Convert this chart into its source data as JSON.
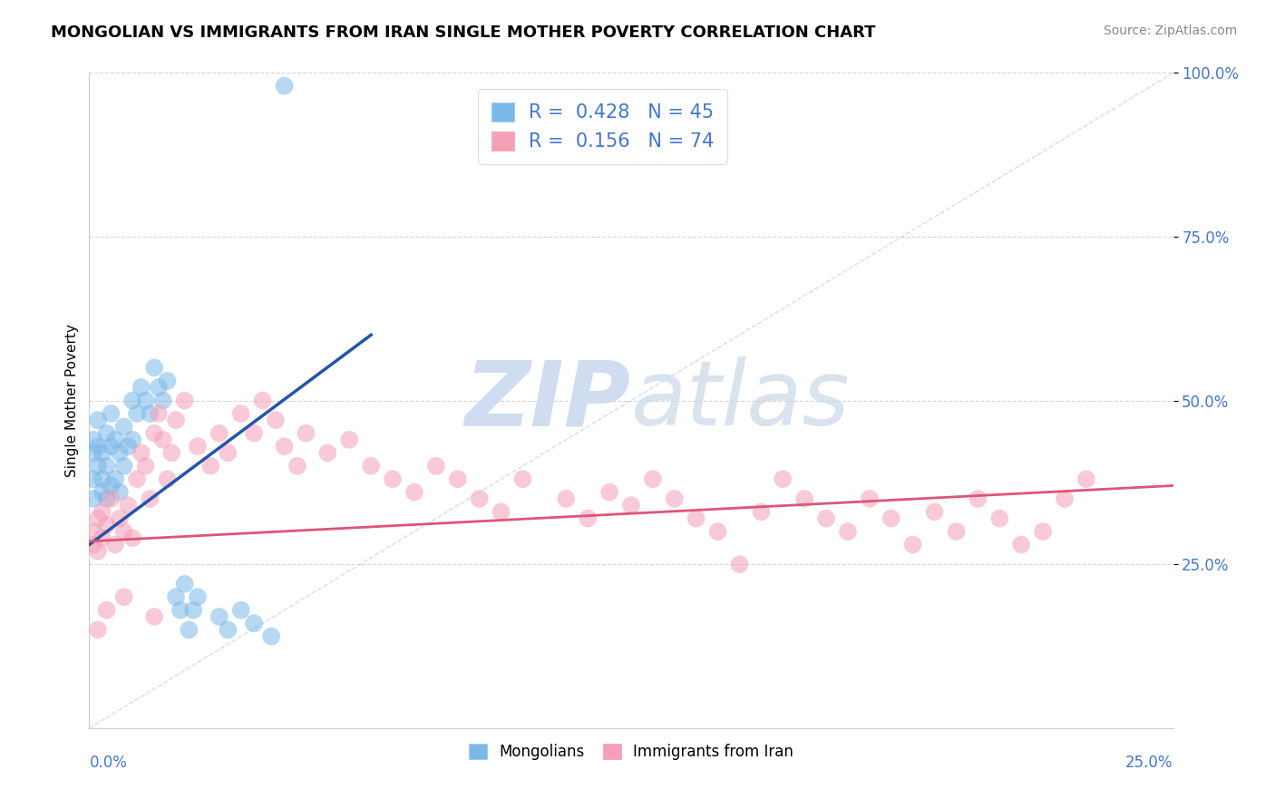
{
  "title": "MONGOLIAN VS IMMIGRANTS FROM IRAN SINGLE MOTHER POVERTY CORRELATION CHART",
  "source": "Source: ZipAtlas.com",
  "ylabel_label": "Single Mother Poverty",
  "legend_mongolians": "Mongolians",
  "legend_iran": "Immigrants from Iran",
  "r_mongolian": 0.428,
  "n_mongolian": 45,
  "r_iran": 0.156,
  "n_iran": 74,
  "color_mongolian": "#7ab8e8",
  "color_iran": "#f4a0b8",
  "color_mongolian_line": "#2255aa",
  "color_iran_line": "#dd5577",
  "color_diag": "#aabbdd",
  "watermark_color": "#d0ddf0",
  "xlim": [
    0,
    0.25
  ],
  "ylim": [
    0,
    1.0
  ],
  "mongolian_x": [
    0.001,
    0.001,
    0.001,
    0.001,
    0.002,
    0.002,
    0.002,
    0.003,
    0.003,
    0.003,
    0.004,
    0.004,
    0.004,
    0.005,
    0.005,
    0.005,
    0.006,
    0.006,
    0.007,
    0.007,
    0.008,
    0.008,
    0.009,
    0.01,
    0.01,
    0.011,
    0.012,
    0.013,
    0.014,
    0.015,
    0.016,
    0.017,
    0.018,
    0.02,
    0.021,
    0.022,
    0.023,
    0.024,
    0.025,
    0.03,
    0.032,
    0.035,
    0.038,
    0.042,
    0.045
  ],
  "mongolian_y": [
    0.44,
    0.42,
    0.38,
    0.35,
    0.47,
    0.43,
    0.4,
    0.38,
    0.42,
    0.36,
    0.45,
    0.4,
    0.35,
    0.48,
    0.43,
    0.37,
    0.44,
    0.38,
    0.42,
    0.36,
    0.46,
    0.4,
    0.43,
    0.5,
    0.44,
    0.48,
    0.52,
    0.5,
    0.48,
    0.55,
    0.52,
    0.5,
    0.53,
    0.2,
    0.18,
    0.22,
    0.15,
    0.18,
    0.2,
    0.17,
    0.15,
    0.18,
    0.16,
    0.14,
    0.98
  ],
  "iran_x": [
    0.001,
    0.001,
    0.002,
    0.002,
    0.003,
    0.003,
    0.004,
    0.005,
    0.006,
    0.007,
    0.008,
    0.009,
    0.01,
    0.011,
    0.012,
    0.013,
    0.014,
    0.015,
    0.016,
    0.017,
    0.018,
    0.019,
    0.02,
    0.022,
    0.025,
    0.028,
    0.03,
    0.032,
    0.035,
    0.038,
    0.04,
    0.043,
    0.045,
    0.048,
    0.05,
    0.055,
    0.06,
    0.065,
    0.07,
    0.075,
    0.08,
    0.085,
    0.09,
    0.095,
    0.1,
    0.11,
    0.115,
    0.12,
    0.125,
    0.13,
    0.135,
    0.14,
    0.145,
    0.15,
    0.155,
    0.16,
    0.165,
    0.17,
    0.175,
    0.18,
    0.185,
    0.19,
    0.195,
    0.2,
    0.205,
    0.21,
    0.215,
    0.22,
    0.225,
    0.23,
    0.002,
    0.004,
    0.008,
    0.015
  ],
  "iran_y": [
    0.3,
    0.28,
    0.32,
    0.27,
    0.33,
    0.29,
    0.31,
    0.35,
    0.28,
    0.32,
    0.3,
    0.34,
    0.29,
    0.38,
    0.42,
    0.4,
    0.35,
    0.45,
    0.48,
    0.44,
    0.38,
    0.42,
    0.47,
    0.5,
    0.43,
    0.4,
    0.45,
    0.42,
    0.48,
    0.45,
    0.5,
    0.47,
    0.43,
    0.4,
    0.45,
    0.42,
    0.44,
    0.4,
    0.38,
    0.36,
    0.4,
    0.38,
    0.35,
    0.33,
    0.38,
    0.35,
    0.32,
    0.36,
    0.34,
    0.38,
    0.35,
    0.32,
    0.3,
    0.25,
    0.33,
    0.38,
    0.35,
    0.32,
    0.3,
    0.35,
    0.32,
    0.28,
    0.33,
    0.3,
    0.35,
    0.32,
    0.28,
    0.3,
    0.35,
    0.38,
    0.15,
    0.18,
    0.2,
    0.17
  ],
  "blue_line_x": [
    0.0,
    0.065
  ],
  "blue_line_y": [
    0.28,
    0.6
  ],
  "pink_line_x": [
    0.0,
    0.25
  ],
  "pink_line_y": [
    0.285,
    0.37
  ]
}
